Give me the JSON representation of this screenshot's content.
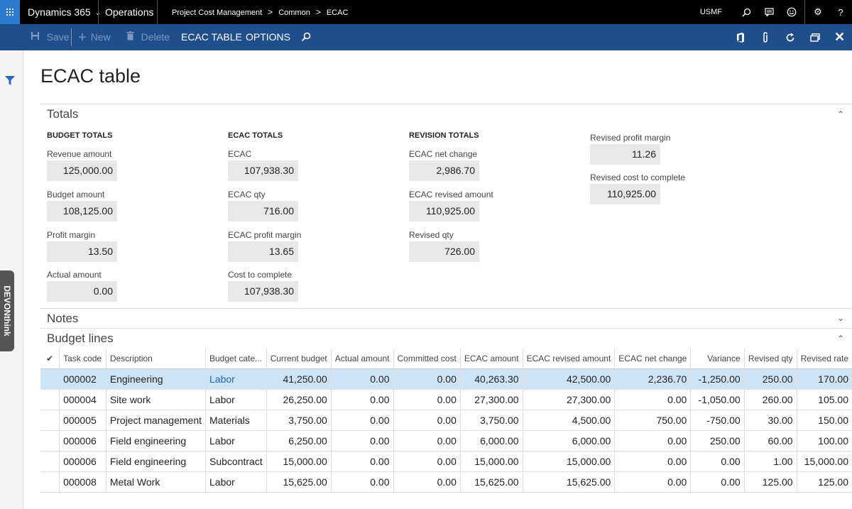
{
  "topbar": {
    "app_name": "Dynamics 365",
    "module": "Operations",
    "breadcrumb": [
      "Project Cost Management",
      "Common",
      "ECAC"
    ],
    "company": "USMF",
    "help": "?"
  },
  "actionbar": {
    "save": "Save",
    "new": "New",
    "delete": "Delete",
    "tab_ecac": "ECAC TABLE",
    "tab_options": "OPTIONS"
  },
  "side": {
    "devon": "DEVONthink"
  },
  "page_title": "ECAC table",
  "totals": {
    "title": "Totals",
    "budget": {
      "header": "BUDGET TOTALS",
      "fields": [
        {
          "label": "Revenue amount",
          "value": "125,000.00"
        },
        {
          "label": "Budget amount",
          "value": "108,125.00"
        },
        {
          "label": "Profit margin",
          "value": "13.50"
        },
        {
          "label": "Actual amount",
          "value": "0.00"
        }
      ]
    },
    "ecac": {
      "header": "ECAC TOTALS",
      "fields": [
        {
          "label": "ECAC",
          "value": "107,938.30"
        },
        {
          "label": "ECAC qty",
          "value": "716.00"
        },
        {
          "label": "ECAC profit margin",
          "value": "13.65"
        },
        {
          "label": "Cost to complete",
          "value": "107,938.30"
        }
      ]
    },
    "revision": {
      "header": "REVISION TOTALS",
      "fields": [
        {
          "label": "ECAC net change",
          "value": "2,986.70"
        },
        {
          "label": "ECAC revised amount",
          "value": "110,925.00"
        },
        {
          "label": "Revised qty",
          "value": "726.00"
        }
      ]
    },
    "revised": {
      "fields": [
        {
          "label": "Revised profit margin",
          "value": "11.26"
        },
        {
          "label": "Revised cost to complete",
          "value": "110,925.00"
        }
      ]
    }
  },
  "notes": {
    "title": "Notes"
  },
  "budget_lines": {
    "title": "Budget lines",
    "columns": [
      "Task code",
      "Description",
      "Budget cate...",
      "Current budget",
      "Actual amount",
      "Committed cost",
      "ECAC amount",
      "ECAC revised amount",
      "ECAC net change",
      "Variance",
      "Revised qty",
      "Revised rate"
    ],
    "rows": [
      [
        "000002",
        "Engineering",
        "Labor",
        "41,250.00",
        "0.00",
        "0.00",
        "40,263.30",
        "42,500.00",
        "2,236.70",
        "-1,250.00",
        "250.00",
        "170.00"
      ],
      [
        "000004",
        "Site work",
        "Labor",
        "26,250.00",
        "0.00",
        "0.00",
        "27,300.00",
        "27,300.00",
        "0.00",
        "-1,050.00",
        "260.00",
        "105.00"
      ],
      [
        "000005",
        "Project management",
        "Materials",
        "3,750.00",
        "0.00",
        "0.00",
        "3,750.00",
        "4,500.00",
        "750.00",
        "-750.00",
        "30.00",
        "150.00"
      ],
      [
        "000006",
        "Field engineering",
        "Labor",
        "6,250.00",
        "0.00",
        "0.00",
        "6,000.00",
        "6,000.00",
        "0.00",
        "250.00",
        "60.00",
        "100.00"
      ],
      [
        "000006",
        "Field engineering",
        "Subcontract",
        "15,000.00",
        "0.00",
        "0.00",
        "15,000.00",
        "15,000.00",
        "0.00",
        "0.00",
        "1.00",
        "15,000.00"
      ],
      [
        "000008",
        "Metal Work",
        "Labor",
        "15,625.00",
        "0.00",
        "0.00",
        "15,625.00",
        "15,625.00",
        "0.00",
        "0.00",
        "125.00",
        "125.00"
      ]
    ]
  }
}
